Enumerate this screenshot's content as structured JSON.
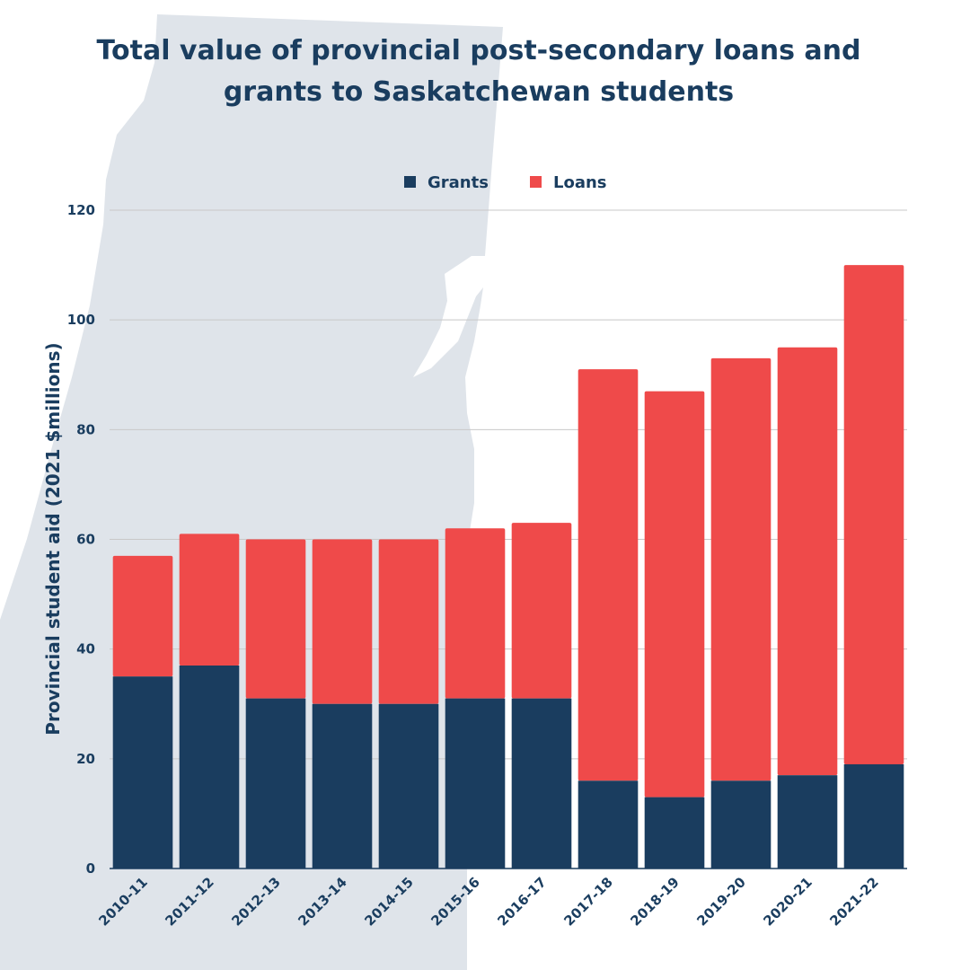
{
  "title": "Total value of provincial post-secondary loans and grants to Saskatchewan students",
  "colors": {
    "grants": "#1a3d5f",
    "loans": "#ef4a4a",
    "text": "#1a3d5f",
    "grid": "#c8c8c8",
    "background_shape": "#dfe4ea"
  },
  "chart_data": {
    "type": "bar",
    "stacked": true,
    "categories": [
      "2010-11",
      "2011-12",
      "2012-13",
      "2013-14",
      "2014-15",
      "2015-16",
      "2016-17",
      "2017-18",
      "2018-19",
      "2019-20",
      "2020-21",
      "2021-22"
    ],
    "series": [
      {
        "name": "Grants",
        "values": [
          35,
          37,
          31,
          30,
          30,
          31,
          31,
          16,
          13,
          16,
          17,
          19
        ]
      },
      {
        "name": "Loans",
        "values": [
          22,
          24,
          29,
          30,
          30,
          31,
          32,
          75,
          74,
          77,
          78,
          91
        ]
      }
    ],
    "ylabel": "Provincial student aid (2021 $millions)",
    "xlabel": "",
    "ylim": [
      0,
      120
    ],
    "yticks": [
      0,
      20,
      40,
      60,
      80,
      100,
      120
    ],
    "grid": true,
    "legend_position": "top-center"
  }
}
